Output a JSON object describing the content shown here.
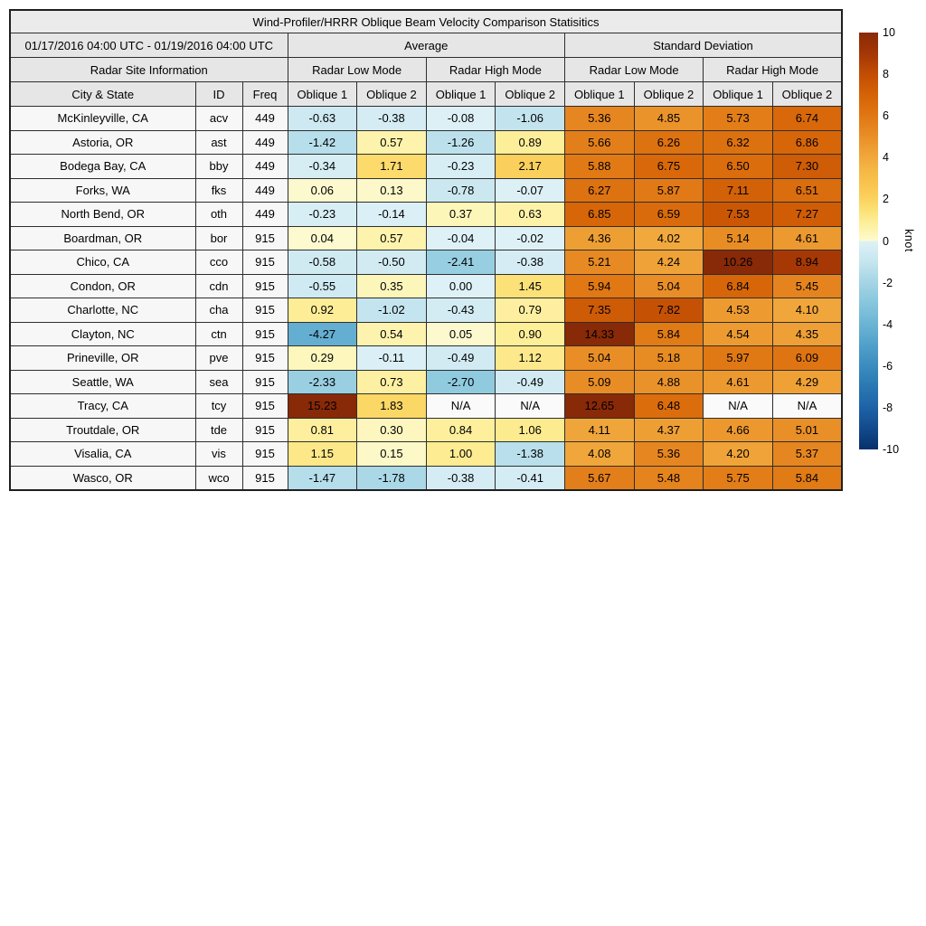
{
  "table": {
    "date_range": "01/17/2016 04:00 UTC - 01/19/2016 04:00 UTC",
    "average": "Average",
    "std_dev": "Standard Deviation",
    "site_info": "Radar Site Information",
    "modes": [
      "Radar Low Mode",
      "Radar High Mode",
      "Radar Low Mode",
      "Radar High Mode"
    ],
    "columns": {
      "city": "City & State",
      "id": "ID",
      "freq": "Freq",
      "oblique": [
        "Oblique 1",
        "Oblique 2"
      ]
    },
    "na_text": "N/A"
  },
  "chart_data": {
    "type": "heatmap",
    "title": "Wind-Profiler/HRRR Oblique Beam Velocity Comparison Statisitics",
    "subtitle": "01/17/2016 04:00 UTC - 01/19/2016 04:00 UTC",
    "columns": [
      "Average Radar Low Mode Oblique 1",
      "Average Radar Low Mode Oblique 2",
      "Average Radar High Mode Oblique 1",
      "Average Radar High Mode Oblique 2",
      "Standard Deviation Radar Low Mode Oblique 1",
      "Standard Deviation Radar Low Mode Oblique 2",
      "Standard Deviation Radar High Mode Oblique 1",
      "Standard Deviation Radar High Mode Oblique 2"
    ],
    "rows": [
      {
        "city": "McKinleyville, CA",
        "id": "acv",
        "freq": "449",
        "values": [
          -0.63,
          -0.38,
          -0.08,
          -1.06,
          5.36,
          4.85,
          5.73,
          6.74
        ]
      },
      {
        "city": "Astoria, OR",
        "id": "ast",
        "freq": "449",
        "values": [
          -1.42,
          0.57,
          -1.26,
          0.89,
          5.66,
          6.26,
          6.32,
          6.86
        ]
      },
      {
        "city": "Bodega Bay, CA",
        "id": "bby",
        "freq": "449",
        "values": [
          -0.34,
          1.71,
          -0.23,
          2.17,
          5.88,
          6.75,
          6.5,
          7.3
        ]
      },
      {
        "city": "Forks, WA",
        "id": "fks",
        "freq": "449",
        "values": [
          0.06,
          0.13,
          -0.78,
          -0.07,
          6.27,
          5.87,
          7.11,
          6.51
        ]
      },
      {
        "city": "North Bend, OR",
        "id": "oth",
        "freq": "449",
        "values": [
          -0.23,
          -0.14,
          0.37,
          0.63,
          6.85,
          6.59,
          7.53,
          7.27
        ]
      },
      {
        "city": "Boardman, OR",
        "id": "bor",
        "freq": "915",
        "values": [
          0.04,
          0.57,
          -0.04,
          -0.02,
          4.36,
          4.02,
          5.14,
          4.61
        ]
      },
      {
        "city": "Chico, CA",
        "id": "cco",
        "freq": "915",
        "values": [
          -0.58,
          -0.5,
          -2.41,
          -0.38,
          5.21,
          4.24,
          10.26,
          8.94
        ]
      },
      {
        "city": "Condon, OR",
        "id": "cdn",
        "freq": "915",
        "values": [
          -0.55,
          0.35,
          0.0,
          1.45,
          5.94,
          5.04,
          6.84,
          5.45
        ]
      },
      {
        "city": "Charlotte, NC",
        "id": "cha",
        "freq": "915",
        "values": [
          0.92,
          -1.02,
          -0.43,
          0.79,
          7.35,
          7.82,
          4.53,
          4.1
        ]
      },
      {
        "city": "Clayton, NC",
        "id": "ctn",
        "freq": "915",
        "values": [
          -4.27,
          0.54,
          0.05,
          0.9,
          14.33,
          5.84,
          4.54,
          4.35
        ]
      },
      {
        "city": "Prineville, OR",
        "id": "pve",
        "freq": "915",
        "values": [
          0.29,
          -0.11,
          -0.49,
          1.12,
          5.04,
          5.18,
          5.97,
          6.09
        ]
      },
      {
        "city": "Seattle, WA",
        "id": "sea",
        "freq": "915",
        "values": [
          -2.33,
          0.73,
          -2.7,
          -0.49,
          5.09,
          4.88,
          4.61,
          4.29
        ]
      },
      {
        "city": "Tracy, CA",
        "id": "tcy",
        "freq": "915",
        "values": [
          15.23,
          1.83,
          null,
          null,
          12.65,
          6.48,
          null,
          null
        ]
      },
      {
        "city": "Troutdale, OR",
        "id": "tde",
        "freq": "915",
        "values": [
          0.81,
          0.3,
          0.84,
          1.06,
          4.11,
          4.37,
          4.66,
          5.01
        ]
      },
      {
        "city": "Visalia, CA",
        "id": "vis",
        "freq": "915",
        "values": [
          1.15,
          0.15,
          1.0,
          -1.38,
          4.08,
          5.36,
          4.2,
          5.37
        ]
      },
      {
        "city": "Wasco, OR",
        "id": "wco",
        "freq": "915",
        "values": [
          -1.47,
          -1.78,
          -0.38,
          -0.41,
          5.67,
          5.48,
          5.75,
          5.84
        ]
      }
    ],
    "colorbar": {
      "label": "knot",
      "min": -10,
      "max": 10,
      "ticks": [
        10,
        8,
        6,
        4,
        2,
        0,
        -2,
        -4,
        -6,
        -8,
        -10
      ]
    },
    "colormap": {
      "na_color": "#fafafa",
      "positive": [
        [
          0,
          "#fdfad2"
        ],
        [
          0.5,
          "#fdf4b0"
        ],
        [
          1,
          "#fdec92"
        ],
        [
          1.5,
          "#fce075"
        ],
        [
          2,
          "#fbd35f"
        ],
        [
          2.5,
          "#fac853"
        ],
        [
          3,
          "#f7bf4a"
        ],
        [
          4,
          "#f1a83c"
        ],
        [
          5,
          "#e98f27"
        ],
        [
          6,
          "#e07713"
        ],
        [
          7,
          "#d56307"
        ],
        [
          8,
          "#c24d04"
        ],
        [
          9,
          "#a43705"
        ],
        [
          10,
          "#882907"
        ]
      ],
      "negative": [
        [
          0,
          "#def1f7"
        ],
        [
          1,
          "#c5e5ef"
        ],
        [
          2,
          "#a4d4e5"
        ],
        [
          3,
          "#86c6dd"
        ],
        [
          4,
          "#6bb3d4"
        ],
        [
          5,
          "#51a0ca"
        ],
        [
          6,
          "#3a8cbf"
        ],
        [
          7,
          "#2a77b2"
        ],
        [
          8,
          "#1d62a7"
        ],
        [
          9,
          "#124a8d"
        ],
        [
          10,
          "#08306b"
        ]
      ]
    }
  }
}
